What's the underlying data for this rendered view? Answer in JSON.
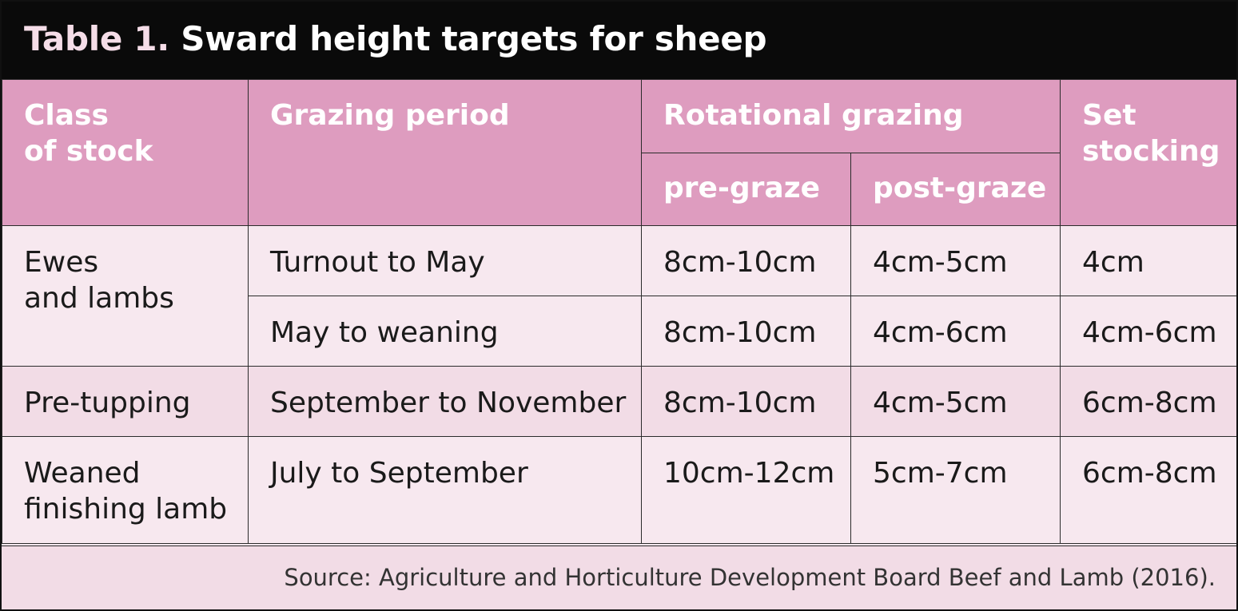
{
  "title": {
    "number": "Table 1.",
    "text": "Sward height targets for sheep"
  },
  "table": {
    "headers": {
      "class_of_stock": [
        "Class",
        "of stock"
      ],
      "grazing_period": "Grazing period",
      "rotational_grazing": "Rotational grazing",
      "pre_graze": "pre-graze",
      "post_graze": "post-graze",
      "set_stocking": [
        "Set",
        "stocking"
      ]
    },
    "rows": [
      {
        "class_of_stock": [
          "Ewes",
          "and lambs"
        ],
        "periods": [
          {
            "grazing_period": "Turnout to May",
            "pre_graze": "8cm-10cm",
            "post_graze": "4cm-5cm",
            "set_stocking": "4cm"
          },
          {
            "grazing_period": "May to weaning",
            "pre_graze": "8cm-10cm",
            "post_graze": "4cm-6cm",
            "set_stocking": "4cm-6cm"
          }
        ]
      },
      {
        "class_of_stock": [
          "Pre-tupping"
        ],
        "periods": [
          {
            "grazing_period": "September to November",
            "pre_graze": "8cm-10cm",
            "post_graze": "4cm-5cm",
            "set_stocking": "6cm-8cm"
          }
        ]
      },
      {
        "class_of_stock": [
          "Weaned",
          "finishing lamb"
        ],
        "periods": [
          {
            "grazing_period": "July to September",
            "pre_graze": "10cm-12cm",
            "post_graze": "5cm-7cm",
            "set_stocking": "6cm-8cm"
          }
        ]
      }
    ]
  },
  "source": "Source: Agriculture and Horticulture Development Board Beef and Lamb (2016).",
  "colors": {
    "title_bg": "#0a0a0a",
    "header_bg": "#de9cbf",
    "row_light": "#f7e8ef",
    "row_alt": "#f2dce6"
  }
}
